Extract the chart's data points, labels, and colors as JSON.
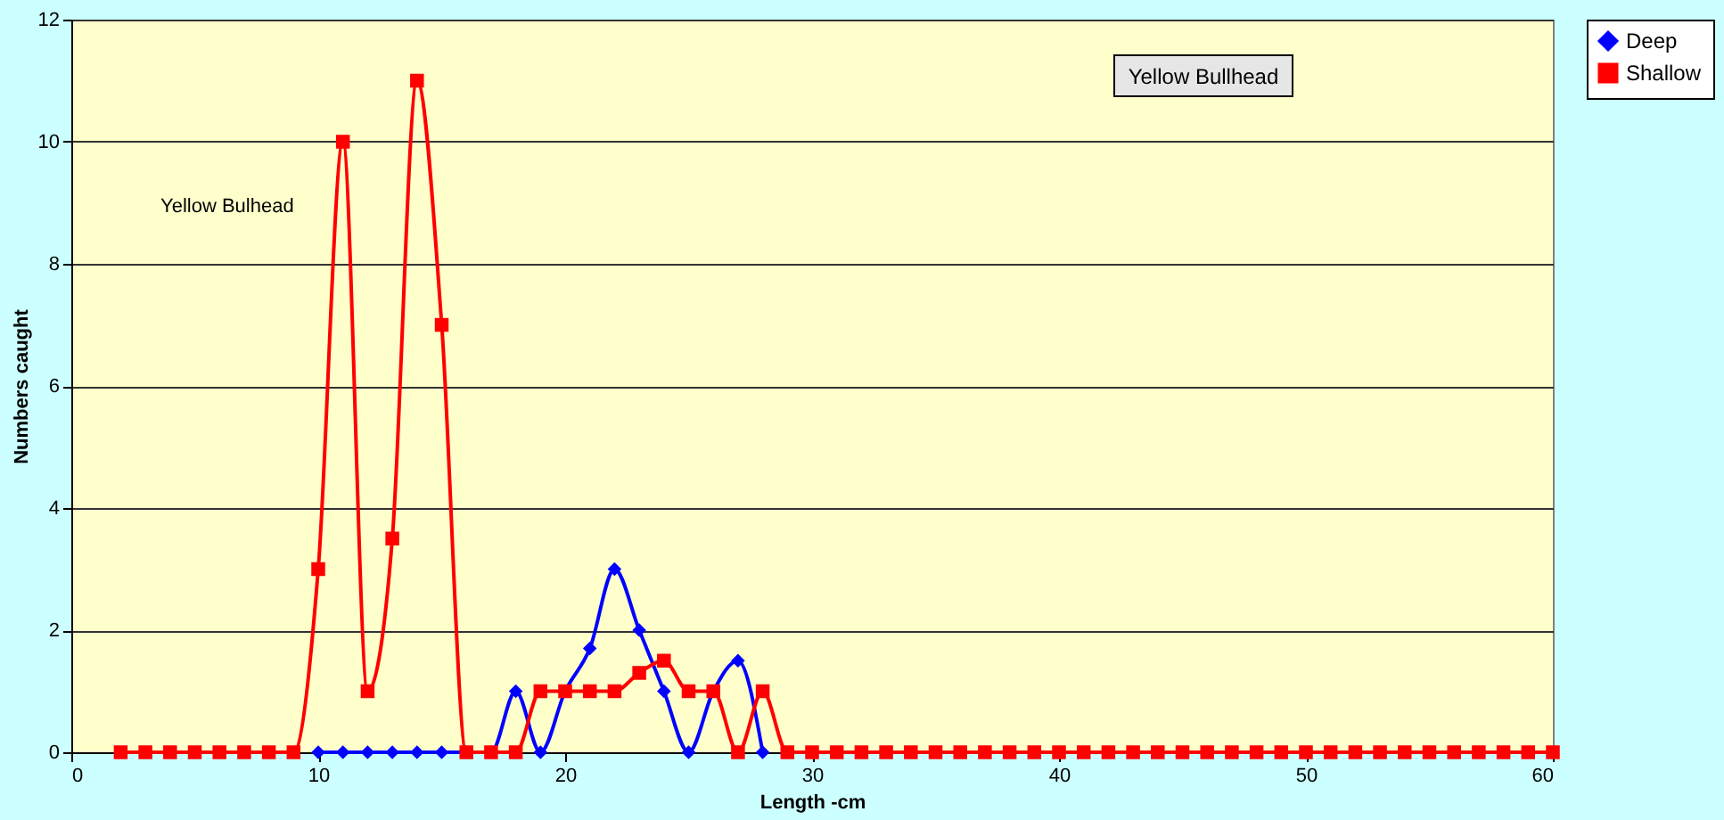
{
  "chart_data": {
    "type": "line",
    "title": "Yellow Bullhead",
    "xlabel": "Length -cm",
    "ylabel": "Numbers caught",
    "annotations": [
      "Yellow Bulhead"
    ],
    "x": [
      2,
      3,
      4,
      5,
      6,
      7,
      8,
      9,
      10,
      11,
      12,
      13,
      14,
      15,
      16,
      17,
      18,
      19,
      20,
      21,
      22,
      23,
      24,
      25,
      26,
      27,
      28,
      29,
      30,
      31,
      32,
      33,
      34,
      35,
      36,
      37,
      38,
      39,
      40,
      41,
      42,
      43,
      44,
      45,
      46,
      47,
      48,
      49,
      50,
      51,
      52,
      53,
      54,
      55,
      56,
      57,
      58,
      59,
      60
    ],
    "series": [
      {
        "name": "Deep",
        "color": "#0000ff",
        "marker": "diamond",
        "values": [
          null,
          null,
          null,
          null,
          null,
          null,
          null,
          null,
          0,
          0,
          0,
          0,
          0,
          0,
          0,
          0,
          1,
          0,
          1,
          1.7,
          3,
          2,
          1,
          0,
          1,
          1.5,
          0,
          null,
          null,
          null,
          null,
          null,
          null,
          null,
          null,
          null,
          null,
          null,
          null,
          null,
          null,
          null,
          null,
          null,
          null,
          null,
          null,
          null,
          null,
          null,
          null,
          null,
          null,
          null,
          null,
          null,
          null,
          null,
          null
        ]
      },
      {
        "name": "Shallow",
        "color": "#ff0000",
        "marker": "square",
        "values": [
          0,
          0,
          0,
          0,
          0,
          0,
          0,
          0,
          3,
          10,
          1,
          3.5,
          11,
          7,
          0,
          0,
          0,
          1,
          1,
          1,
          1,
          1.3,
          1.5,
          1,
          1,
          0,
          1,
          0,
          0,
          0,
          0,
          0,
          0,
          0,
          0,
          0,
          0,
          0,
          0,
          0,
          0,
          0,
          0,
          0,
          0,
          0,
          0,
          0,
          0,
          0,
          0,
          0,
          0,
          0,
          0,
          0,
          0,
          0,
          0
        ]
      }
    ],
    "xlim": [
      0,
      60
    ],
    "xticks": [
      0,
      10,
      20,
      30,
      40,
      50,
      60
    ],
    "ylim": [
      0,
      12
    ],
    "yticks": [
      0,
      2,
      4,
      6,
      8,
      10,
      12
    ],
    "grid": "y",
    "legend": "right",
    "line_style": "solid"
  }
}
